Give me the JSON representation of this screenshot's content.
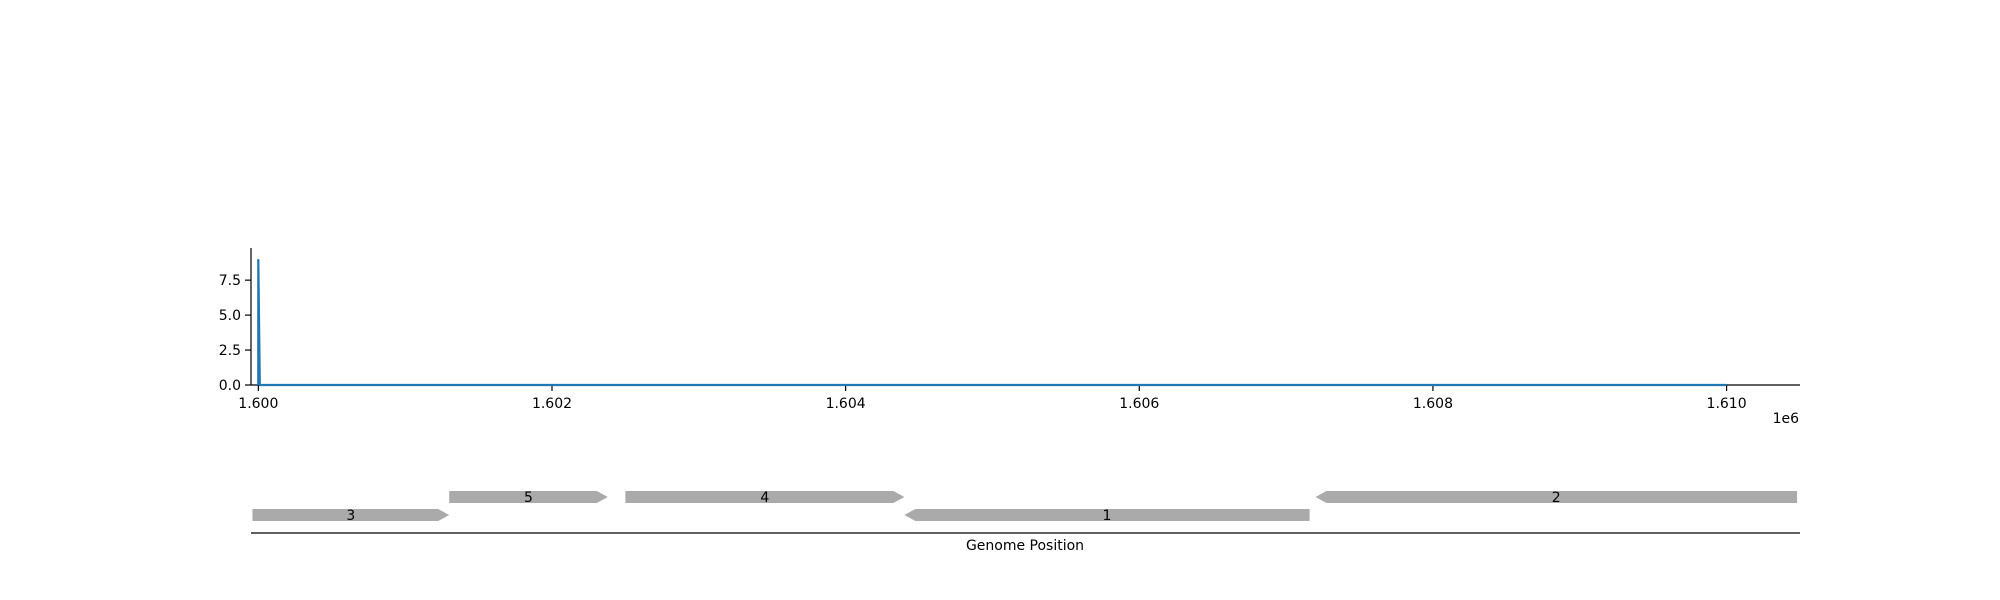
{
  "chart_data": [
    {
      "type": "line",
      "color": "#1f77b4",
      "x_scale_label": "1e6",
      "xlim": [
        1599950,
        1610500
      ],
      "ylim": [
        0,
        9.8
      ],
      "x_ticks": [
        {
          "value": 1600000,
          "label": "1.600"
        },
        {
          "value": 1602000,
          "label": "1.602"
        },
        {
          "value": 1604000,
          "label": "1.604"
        },
        {
          "value": 1606000,
          "label": "1.606"
        },
        {
          "value": 1608000,
          "label": "1.608"
        },
        {
          "value": 1610000,
          "label": "1.610"
        }
      ],
      "y_ticks": [
        {
          "value": 0.0,
          "label": "0.0"
        },
        {
          "value": 2.5,
          "label": "2.5"
        },
        {
          "value": 5.0,
          "label": "5.0"
        },
        {
          "value": 7.5,
          "label": "7.5"
        }
      ],
      "series": [
        {
          "x": [
            1600000,
            1600000,
            1600010,
            1610000
          ],
          "values": [
            0,
            9,
            0,
            0
          ]
        }
      ],
      "grid": false
    },
    {
      "type": "gene-track",
      "xlabel": "Genome Position",
      "xlim": [
        1599950,
        1610500
      ],
      "feature_color": "#aaaaaa",
      "features": [
        {
          "label": "3",
          "start": 1599960,
          "end": 1601300,
          "strand": "+",
          "row": 0
        },
        {
          "label": "5",
          "start": 1601300,
          "end": 1602380,
          "strand": "+",
          "row": 1
        },
        {
          "label": "4",
          "start": 1602500,
          "end": 1604400,
          "strand": "+",
          "row": 1
        },
        {
          "label": "1",
          "start": 1604400,
          "end": 1607160,
          "strand": "-",
          "row": 0
        },
        {
          "label": "2",
          "start": 1607200,
          "end": 1610480,
          "strand": "-",
          "row": 1
        }
      ]
    }
  ]
}
